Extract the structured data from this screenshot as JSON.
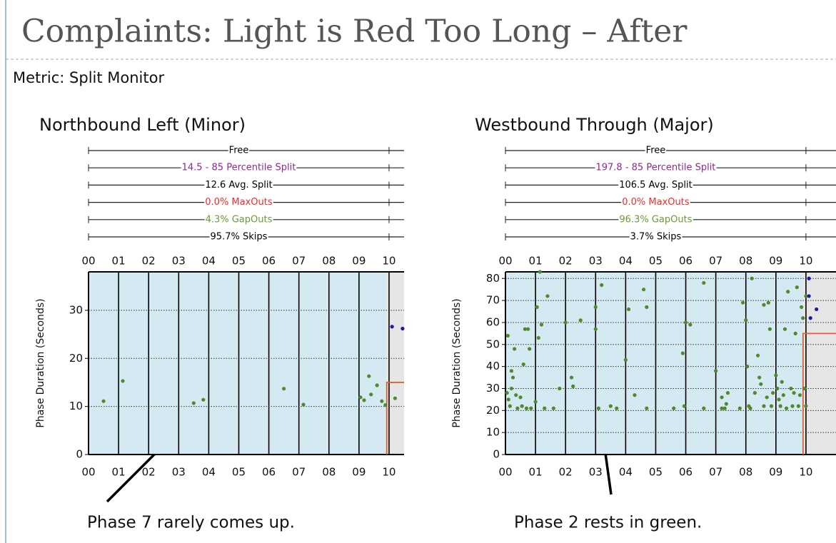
{
  "title": "Complaints: Light is Red Too Long – After",
  "subtitle": "Metric: Split Monitor",
  "chart_data": [
    {
      "type": "scatter",
      "title": "Northbound Left (Minor)",
      "annotation": "Phase 7 rarely comes up.",
      "ylabel": "Phase Duration (Seconds)",
      "xlim": [
        0,
        10.5
      ],
      "ylim": [
        0,
        38
      ],
      "xticks": [
        {
          "value": 0,
          "label": "00"
        },
        {
          "value": 1,
          "label": "01"
        },
        {
          "value": 2,
          "label": "02"
        },
        {
          "value": 3,
          "label": "03"
        },
        {
          "value": 4,
          "label": "04"
        },
        {
          "value": 5,
          "label": "05"
        },
        {
          "value": 6,
          "label": "06"
        },
        {
          "value": 7,
          "label": "07"
        },
        {
          "value": 8,
          "label": "08"
        },
        {
          "value": 9,
          "label": "09"
        },
        {
          "value": 10,
          "label": "10"
        }
      ],
      "yticks": [
        0,
        10,
        20,
        30
      ],
      "bands": [
        {
          "label": "Free",
          "color": "#000000"
        },
        {
          "label": "14.5 - 85 Percentile Split",
          "color": "#8b2a8b"
        },
        {
          "label": "12.6 Avg. Split",
          "color": "#000000"
        },
        {
          "label": "0.0% MaxOuts",
          "color": "#e03030"
        },
        {
          "label": "4.3% GapOuts",
          "color": "#6a9a3a"
        },
        {
          "label": "95.7% Skips",
          "color": "#000000"
        }
      ],
      "plan_change_x": 9.9,
      "split_line_y": 15,
      "series": [
        {
          "color": "#4f8a2a",
          "x": [
            0.5,
            1.14,
            3.5,
            3.82,
            6.5,
            7.15,
            9.05,
            9.17,
            9.33,
            9.4,
            9.6,
            9.76,
            9.88,
            10.2
          ],
          "values": [
            11.1,
            15.3,
            10.7,
            11.4,
            13.7,
            10.4,
            11.9,
            11.3,
            16.3,
            12.5,
            14.4,
            11.1,
            10.3,
            11.7
          ]
        },
        {
          "color": "#1a1aa0",
          "x": [
            10.1,
            10.45
          ],
          "values": [
            26.6,
            26.2
          ]
        }
      ]
    },
    {
      "type": "scatter",
      "title": "Westbound Through (Major)",
      "annotation": "Phase 2 rests in green.",
      "ylabel": "Phase Duration (Seconds)",
      "xlim": [
        0,
        11
      ],
      "ylim": [
        0,
        83
      ],
      "xticks": [
        {
          "value": 0,
          "label": "00"
        },
        {
          "value": 1,
          "label": "01"
        },
        {
          "value": 2,
          "label": "02"
        },
        {
          "value": 3,
          "label": "03"
        },
        {
          "value": 4,
          "label": "04"
        },
        {
          "value": 5,
          "label": "05"
        },
        {
          "value": 6,
          "label": "06"
        },
        {
          "value": 7,
          "label": "07"
        },
        {
          "value": 8,
          "label": "08"
        },
        {
          "value": 9,
          "label": "09"
        },
        {
          "value": 10,
          "label": "10"
        }
      ],
      "yticks": [
        0,
        10,
        20,
        30,
        40,
        50,
        60,
        70,
        80
      ],
      "bands": [
        {
          "label": "Free",
          "color": "#000000"
        },
        {
          "label": "197.8 - 85 Percentile Split",
          "color": "#8b2a8b"
        },
        {
          "label": "106.5 Avg. Split",
          "color": "#000000"
        },
        {
          "label": "0.0% MaxOuts",
          "color": "#e03030"
        },
        {
          "label": "96.3% GapOuts",
          "color": "#6a9a3a"
        },
        {
          "label": "3.7% Skips",
          "color": "#000000"
        }
      ],
      "plan_change_x": 9.88,
      "split_line_y": 55,
      "series": [
        {
          "color": "#4f8a2a",
          "x": [
            0.05,
            0.1,
            0.15,
            0.2,
            0.08,
            0.3,
            0.25,
            0.2,
            0.35,
            0.4,
            0.5,
            0.55,
            0.6,
            0.65,
            0.75,
            0.8,
            0.7,
            0.85,
            1.0,
            1.05,
            1.1,
            1.15,
            1.2,
            1.4,
            1.3,
            1.6,
            1.8,
            2.0,
            2.2,
            2.25,
            2.5,
            3.0,
            3.0,
            3.2,
            3.1,
            3.5,
            3.7,
            4.0,
            4.1,
            4.3,
            4.6,
            4.7,
            4.7,
            5.6,
            5.9,
            5.95,
            6.0,
            6.15,
            6.6,
            6.6,
            7.0,
            7.2,
            7.2,
            7.3,
            7.35,
            7.4,
            7.8,
            7.9,
            8.0,
            8.05,
            8.1,
            8.15,
            8.2,
            8.3,
            8.4,
            8.45,
            8.5,
            8.6,
            8.6,
            8.7,
            8.75,
            8.8,
            8.85,
            8.9,
            9.0,
            9.05,
            9.1,
            9.15,
            9.2,
            9.25,
            9.3,
            9.35,
            9.4,
            9.5,
            9.55,
            9.6,
            9.65,
            9.7,
            9.75,
            9.8,
            9.85,
            9.9,
            9.95,
            10.0,
            10.0
          ],
          "values": [
            28,
            25,
            22,
            30,
            54,
            48,
            35,
            38,
            27,
            21,
            26,
            22,
            41,
            57,
            57,
            48,
            21,
            21,
            24,
            67,
            53,
            83,
            59,
            72,
            21,
            21,
            30,
            60,
            35,
            31,
            61,
            67,
            57,
            77,
            21,
            22,
            21,
            43,
            66,
            27,
            75,
            67,
            21,
            21,
            46,
            22,
            60,
            59,
            78,
            21,
            38,
            26,
            21,
            21,
            23,
            28,
            21,
            69,
            61,
            40,
            22,
            21,
            80,
            28,
            45,
            35,
            32,
            22,
            68,
            26,
            69,
            57,
            22,
            28,
            36,
            30,
            25,
            22,
            33,
            27,
            57,
            21,
            74,
            30,
            22,
            28,
            55,
            76,
            22,
            27,
            67,
            62,
            30,
            22,
            72
          ]
        },
        {
          "color": "#1a1aa0",
          "x": [
            10.1,
            10.1,
            10.35,
            10.15
          ],
          "values": [
            80,
            72,
            66,
            62
          ]
        }
      ]
    }
  ]
}
